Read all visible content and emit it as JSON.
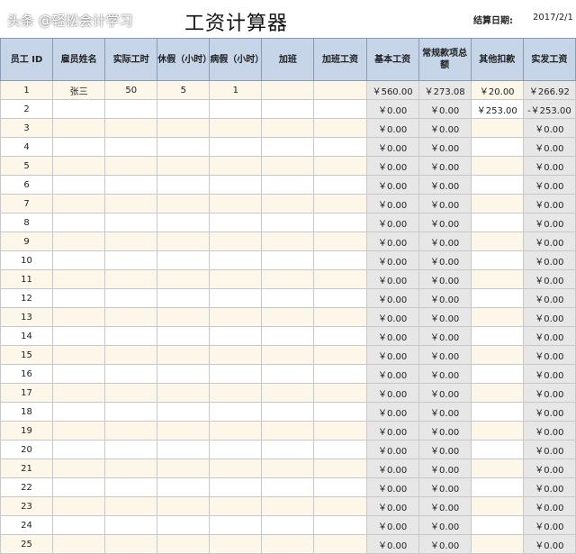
{
  "title": "工资计算器",
  "date_label": "结算日期:",
  "date_value": "2017/2/1",
  "headers": [
    "员工 ID",
    "雇员姓名",
    "实际工时",
    "休假（小时）",
    "病假（小时）",
    "加班",
    "加班工资",
    "基本工资",
    "常规款项总额",
    "其他扣款",
    "实发工资"
  ],
  "rows": [
    [
      "1",
      "张三",
      "50",
      "5",
      "1",
      "",
      "",
      "￥560.00",
      "￥273.08",
      "￥20.00",
      "￥266.92"
    ],
    [
      "2",
      "",
      "",
      "",
      "",
      "",
      "",
      "￥0.00",
      "￥0.00",
      "￥253.00",
      "-￥253.00"
    ],
    [
      "3",
      "",
      "",
      "",
      "",
      "",
      "",
      "￥0.00",
      "￥0.00",
      "",
      "￥0.00"
    ],
    [
      "4",
      "",
      "",
      "",
      "",
      "",
      "",
      "￥0.00",
      "￥0.00",
      "",
      "￥0.00"
    ],
    [
      "5",
      "",
      "",
      "",
      "",
      "",
      "",
      "￥0.00",
      "￥0.00",
      "",
      "￥0.00"
    ],
    [
      "6",
      "",
      "",
      "",
      "",
      "",
      "",
      "￥0.00",
      "￥0.00",
      "",
      "￥0.00"
    ],
    [
      "7",
      "",
      "",
      "",
      "",
      "",
      "",
      "￥0.00",
      "￥0.00",
      "",
      "￥0.00"
    ],
    [
      "8",
      "",
      "",
      "",
      "",
      "",
      "",
      "￥0.00",
      "￥0.00",
      "",
      "￥0.00"
    ],
    [
      "9",
      "",
      "",
      "",
      "",
      "",
      "",
      "￥0.00",
      "￥0.00",
      "",
      "￥0.00"
    ],
    [
      "10",
      "",
      "",
      "",
      "",
      "",
      "",
      "￥0.00",
      "￥0.00",
      "",
      "￥0.00"
    ],
    [
      "11",
      "",
      "",
      "",
      "",
      "",
      "",
      "￥0.00",
      "￥0.00",
      "",
      "￥0.00"
    ],
    [
      "12",
      "",
      "",
      "",
      "",
      "",
      "",
      "￥0.00",
      "￥0.00",
      "",
      "￥0.00"
    ],
    [
      "13",
      "",
      "",
      "",
      "",
      "",
      "",
      "￥0.00",
      "￥0.00",
      "",
      "￥0.00"
    ],
    [
      "14",
      "",
      "",
      "",
      "",
      "",
      "",
      "￥0.00",
      "￥0.00",
      "",
      "￥0.00"
    ],
    [
      "15",
      "",
      "",
      "",
      "",
      "",
      "",
      "￥0.00",
      "￥0.00",
      "",
      "￥0.00"
    ],
    [
      "16",
      "",
      "",
      "",
      "",
      "",
      "",
      "￥0.00",
      "￥0.00",
      "",
      "￥0.00"
    ],
    [
      "17",
      "",
      "",
      "",
      "",
      "",
      "",
      "￥0.00",
      "￥0.00",
      "",
      "￥0.00"
    ],
    [
      "18",
      "",
      "",
      "",
      "",
      "",
      "",
      "￥0.00",
      "￥0.00",
      "",
      "￥0.00"
    ],
    [
      "19",
      "",
      "",
      "",
      "",
      "",
      "",
      "￥0.00",
      "￥0.00",
      "",
      "￥0.00"
    ],
    [
      "20",
      "",
      "",
      "",
      "",
      "",
      "",
      "￥0.00",
      "￥0.00",
      "",
      "￥0.00"
    ],
    [
      "21",
      "",
      "",
      "",
      "",
      "",
      "",
      "￥0.00",
      "￥0.00",
      "",
      "￥0.00"
    ],
    [
      "22",
      "",
      "",
      "",
      "",
      "",
      "",
      "￥0.00",
      "￥0.00",
      "",
      "￥0.00"
    ],
    [
      "23",
      "",
      "",
      "",
      "",
      "",
      "",
      "￥0.00",
      "￥0.00",
      "",
      "￥0.00"
    ],
    [
      "24",
      "",
      "",
      "",
      "",
      "",
      "",
      "￥0.00",
      "￥0.00",
      "",
      "￥0.00"
    ],
    [
      "25",
      "",
      "",
      "",
      "",
      "",
      "",
      "￥0.00",
      "￥0.00",
      "",
      "￥0.00"
    ]
  ],
  "watermark": "头条 @轻松会计学习",
  "colors": {
    "header": "#c6d5e8",
    "odd_row": "#fcf7e8",
    "computed": "#e7e7e7"
  }
}
